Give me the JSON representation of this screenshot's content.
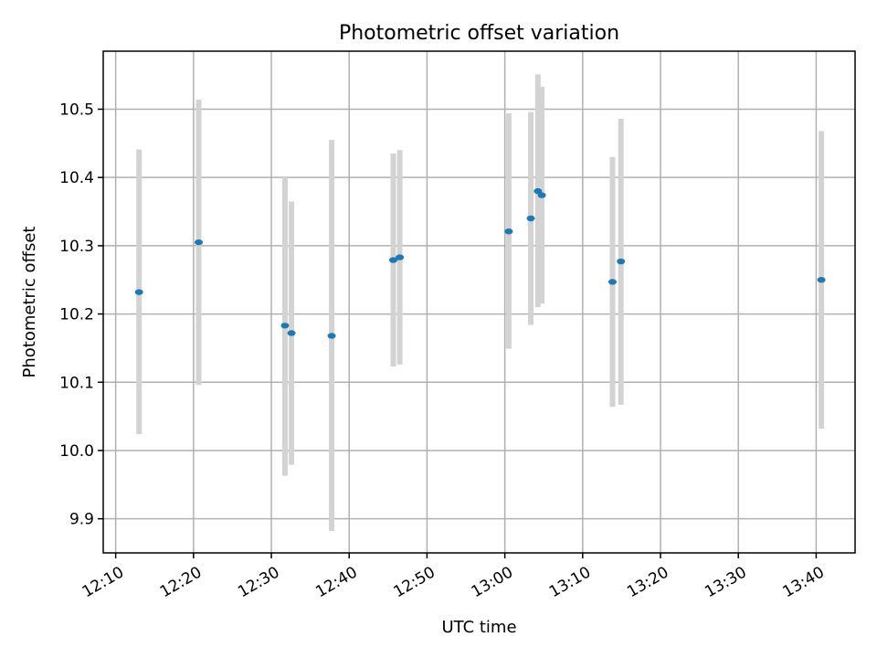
{
  "chart_data": {
    "type": "scatter",
    "title": "Photometric offset variation",
    "xlabel": "UTC time",
    "ylabel": "Photometric offset",
    "x_tick_labels": [
      "12:10",
      "12:20",
      "12:30",
      "12:40",
      "12:50",
      "13:00",
      "13:10",
      "13:20",
      "13:30",
      "13:40"
    ],
    "x_range": [
      "12:08:24",
      "13:45:00"
    ],
    "y_ticks": [
      9.9,
      10.0,
      10.1,
      10.2,
      10.3,
      10.4,
      10.5
    ],
    "y_tick_labels": [
      "9.9",
      "10.0",
      "10.1",
      "10.2",
      "10.3",
      "10.4",
      "10.5"
    ],
    "ylim": [
      9.85,
      10.585
    ],
    "grid": true,
    "marker_color": "#1f77b4",
    "errorbar_color": "#d3d3d3",
    "points": [
      {
        "x": "12:13:00",
        "y": 10.232,
        "low": 10.024,
        "high": 10.441
      },
      {
        "x": "12:20:40",
        "y": 10.305,
        "low": 10.096,
        "high": 10.514
      },
      {
        "x": "12:31:45",
        "y": 10.183,
        "low": 9.963,
        "high": 10.402
      },
      {
        "x": "12:32:35",
        "y": 10.172,
        "low": 9.979,
        "high": 10.365
      },
      {
        "x": "12:37:45",
        "y": 10.168,
        "low": 9.882,
        "high": 10.455
      },
      {
        "x": "12:45:40",
        "y": 10.279,
        "low": 10.123,
        "high": 10.435
      },
      {
        "x": "12:46:30",
        "y": 10.283,
        "low": 10.126,
        "high": 10.44
      },
      {
        "x": "13:00:30",
        "y": 10.321,
        "low": 10.149,
        "high": 10.494
      },
      {
        "x": "13:03:20",
        "y": 10.34,
        "low": 10.184,
        "high": 10.496
      },
      {
        "x": "13:04:15",
        "y": 10.38,
        "low": 10.21,
        "high": 10.551
      },
      {
        "x": "13:04:45",
        "y": 10.374,
        "low": 10.215,
        "high": 10.533
      },
      {
        "x": "13:13:50",
        "y": 10.247,
        "low": 10.064,
        "high": 10.43
      },
      {
        "x": "13:14:55",
        "y": 10.277,
        "low": 10.067,
        "high": 10.486
      },
      {
        "x": "13:40:40",
        "y": 10.25,
        "low": 10.032,
        "high": 10.468
      }
    ]
  }
}
